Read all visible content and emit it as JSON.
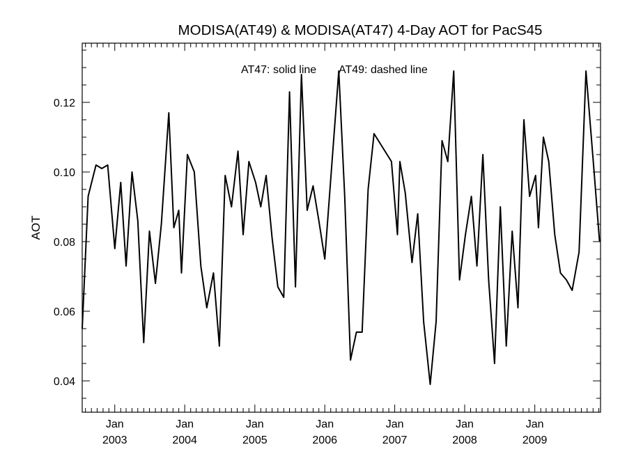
{
  "chart_data": {
    "type": "line",
    "title": "MODISA(AT49) & MODISA(AT47) 4-Day AOT for PacS45",
    "annotation_solid": "AT47: solid line",
    "annotation_dashed": "AT49: dashed line",
    "xlabel": "",
    "ylabel": "AOT",
    "ylim": [
      0.031,
      0.137
    ],
    "yticks": [
      0.04,
      0.06,
      0.08,
      0.1,
      0.12
    ],
    "yticklabels": [
      "0.04",
      "0.06",
      "0.08",
      "0.10",
      "0.12"
    ],
    "xlim": [
      "2002-07-15",
      "2009-12-10"
    ],
    "xticks": [
      {
        "date": "2003-01-01",
        "month": "Jan",
        "year": "2003"
      },
      {
        "date": "2004-01-01",
        "month": "Jan",
        "year": "2004"
      },
      {
        "date": "2005-01-01",
        "month": "Jan",
        "year": "2005"
      },
      {
        "date": "2006-01-01",
        "month": "Jan",
        "year": "2006"
      },
      {
        "date": "2007-01-01",
        "month": "Jan",
        "year": "2007"
      },
      {
        "date": "2008-01-01",
        "month": "Jan",
        "year": "2008"
      },
      {
        "date": "2009-01-01",
        "month": "Jan",
        "year": "2009"
      }
    ],
    "grid": false,
    "series": [
      {
        "style": "solid",
        "color": "#000000",
        "points": [
          [
            "2002-07-15",
            0.055
          ],
          [
            "2002-08-15",
            0.093
          ],
          [
            "2002-09-25",
            0.102
          ],
          [
            "2002-10-25",
            0.101
          ],
          [
            "2002-11-25",
            0.102
          ],
          [
            "2003-01-01",
            0.078
          ],
          [
            "2003-02-01",
            0.097
          ],
          [
            "2003-03-01",
            0.073
          ],
          [
            "2003-04-01",
            0.1
          ],
          [
            "2003-05-01",
            0.086
          ],
          [
            "2003-06-01",
            0.051
          ],
          [
            "2003-07-01",
            0.083
          ],
          [
            "2003-08-01",
            0.068
          ],
          [
            "2003-09-01",
            0.085
          ],
          [
            "2003-10-10",
            0.117
          ],
          [
            "2003-11-05",
            0.084
          ],
          [
            "2003-12-01",
            0.089
          ],
          [
            "2003-12-15",
            0.071
          ],
          [
            "2004-01-15",
            0.105
          ],
          [
            "2004-02-20",
            0.1
          ],
          [
            "2004-03-25",
            0.073
          ],
          [
            "2004-04-25",
            0.061
          ],
          [
            "2004-05-30",
            0.071
          ],
          [
            "2004-06-30",
            0.05
          ],
          [
            "2004-07-30",
            0.099
          ],
          [
            "2004-09-01",
            0.09
          ],
          [
            "2004-10-05",
            0.106
          ],
          [
            "2004-11-01",
            0.082
          ],
          [
            "2004-12-01",
            0.103
          ],
          [
            "2005-01-05",
            0.097
          ],
          [
            "2005-02-01",
            0.09
          ],
          [
            "2005-03-01",
            0.099
          ],
          [
            "2005-04-01",
            0.081
          ],
          [
            "2005-05-01",
            0.067
          ],
          [
            "2005-06-01",
            0.064
          ],
          [
            "2005-07-01",
            0.123
          ],
          [
            "2005-08-01",
            0.067
          ],
          [
            "2005-09-01",
            0.128
          ],
          [
            "2005-10-01",
            0.089
          ],
          [
            "2005-11-01",
            0.096
          ],
          [
            "2005-12-01",
            0.086
          ],
          [
            "2006-01-01",
            0.075
          ],
          [
            "2006-03-15",
            0.129
          ],
          [
            "2006-04-15",
            0.093
          ],
          [
            "2006-05-15",
            0.046
          ],
          [
            "2006-06-15",
            0.054
          ],
          [
            "2006-07-15",
            0.054
          ],
          [
            "2006-08-15",
            0.095
          ],
          [
            "2006-09-15",
            0.111
          ],
          [
            "2006-12-15",
            0.103
          ],
          [
            "2007-01-15",
            0.082
          ],
          [
            "2007-01-28",
            0.103
          ],
          [
            "2007-02-25",
            0.094
          ],
          [
            "2007-04-01",
            0.074
          ],
          [
            "2007-05-01",
            0.088
          ],
          [
            "2007-06-01",
            0.057
          ],
          [
            "2007-07-05",
            0.039
          ],
          [
            "2007-08-05",
            0.057
          ],
          [
            "2007-09-05",
            0.109
          ],
          [
            "2007-10-05",
            0.103
          ],
          [
            "2007-11-05",
            0.129
          ],
          [
            "2007-12-05",
            0.069
          ],
          [
            "2008-01-05",
            0.082
          ],
          [
            "2008-02-05",
            0.093
          ],
          [
            "2008-03-05",
            0.073
          ],
          [
            "2008-04-05",
            0.105
          ],
          [
            "2008-05-05",
            0.069
          ],
          [
            "2008-06-05",
            0.045
          ],
          [
            "2008-07-05",
            0.09
          ],
          [
            "2008-08-05",
            0.05
          ],
          [
            "2008-09-05",
            0.083
          ],
          [
            "2008-10-05",
            0.061
          ],
          [
            "2008-11-05",
            0.115
          ],
          [
            "2008-12-05",
            0.093
          ],
          [
            "2009-01-05",
            0.099
          ],
          [
            "2009-01-20",
            0.084
          ],
          [
            "2009-02-15",
            0.11
          ],
          [
            "2009-03-15",
            0.103
          ],
          [
            "2009-04-15",
            0.082
          ],
          [
            "2009-05-15",
            0.071
          ],
          [
            "2009-06-15",
            0.069
          ],
          [
            "2009-07-15",
            0.066
          ],
          [
            "2009-08-20",
            0.077
          ],
          [
            "2009-09-25",
            0.129
          ],
          [
            "2009-11-05",
            0.101
          ],
          [
            "2009-12-05",
            0.08
          ]
        ]
      }
    ]
  }
}
